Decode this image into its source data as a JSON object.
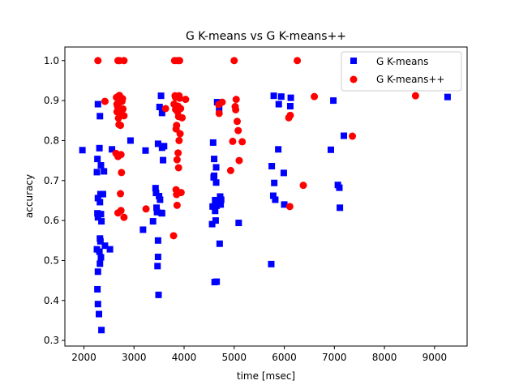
{
  "chart_data": {
    "type": "scatter",
    "title": "G K-means vs G K-means++",
    "xlabel": "time [msec]",
    "ylabel": "accuracy",
    "xlim": [
      1620,
      9650
    ],
    "ylim": [
      0.286,
      1.034
    ],
    "xticks": [
      2000,
      3000,
      4000,
      5000,
      6000,
      7000,
      8000,
      9000
    ],
    "xtick_labels": [
      "2000",
      "3000",
      "4000",
      "5000",
      "6000",
      "7000",
      "8000",
      "9000"
    ],
    "yticks": [
      0.3,
      0.4,
      0.5,
      0.6,
      0.7,
      0.8,
      0.9,
      1.0
    ],
    "ytick_labels": [
      "0.3",
      "0.4",
      "0.5",
      "0.6",
      "0.7",
      "0.8",
      "0.9",
      "1.0"
    ],
    "grid": false,
    "legend": {
      "position": "top-right"
    },
    "series": [
      {
        "name": "G K-means",
        "marker": "square",
        "color": "#0000ff",
        "points": [
          [
            1970,
            0.776
          ],
          [
            2280,
            0.891
          ],
          [
            2270,
            0.754
          ],
          [
            2260,
            0.721
          ],
          [
            2280,
            0.656
          ],
          [
            2270,
            0.618
          ],
          [
            2280,
            0.608
          ],
          [
            2260,
            0.528
          ],
          [
            2280,
            0.472
          ],
          [
            2270,
            0.428
          ],
          [
            2280,
            0.391
          ],
          [
            2300,
            0.366
          ],
          [
            2310,
            0.781
          ],
          [
            2320,
            0.861
          ],
          [
            2340,
            0.738
          ],
          [
            2330,
            0.666
          ],
          [
            2320,
            0.646
          ],
          [
            2340,
            0.616
          ],
          [
            2350,
            0.598
          ],
          [
            2320,
            0.555
          ],
          [
            2330,
            0.548
          ],
          [
            2310,
            0.522
          ],
          [
            2340,
            0.508
          ],
          [
            2320,
            0.492
          ],
          [
            2350,
            0.326
          ],
          [
            2380,
            0.666
          ],
          [
            2400,
            0.723
          ],
          [
            2420,
            0.537
          ],
          [
            2520,
            0.528
          ],
          [
            2560,
            0.778
          ],
          [
            2930,
            0.8
          ],
          [
            3180,
            0.577
          ],
          [
            3230,
            0.775
          ],
          [
            3380,
            0.598
          ],
          [
            3430,
            0.681
          ],
          [
            3440,
            0.669
          ],
          [
            3450,
            0.632
          ],
          [
            3460,
            0.621
          ],
          [
            3470,
            0.486
          ],
          [
            3480,
            0.509
          ],
          [
            3480,
            0.55
          ],
          [
            3480,
            0.792
          ],
          [
            3490,
            0.414
          ],
          [
            3500,
            0.661
          ],
          [
            3510,
            0.884
          ],
          [
            3520,
            0.652
          ],
          [
            3540,
            0.912
          ],
          [
            3550,
            0.619
          ],
          [
            3560,
            0.618
          ],
          [
            3560,
            0.782
          ],
          [
            3580,
            0.751
          ],
          [
            3600,
            0.786
          ],
          [
            3560,
            0.869
          ],
          [
            4560,
            0.591
          ],
          [
            4570,
            0.635
          ],
          [
            4580,
            0.795
          ],
          [
            4590,
            0.708
          ],
          [
            4600,
            0.754
          ],
          [
            4600,
            0.712
          ],
          [
            4610,
            0.446
          ],
          [
            4620,
            0.624
          ],
          [
            4620,
            0.651
          ],
          [
            4630,
            0.6
          ],
          [
            4640,
            0.695
          ],
          [
            4640,
            0.733
          ],
          [
            4650,
            0.447
          ],
          [
            4650,
            0.637
          ],
          [
            4660,
            0.896
          ],
          [
            4700,
            0.88
          ],
          [
            4710,
            0.542
          ],
          [
            4720,
            0.66
          ],
          [
            4730,
            0.64
          ],
          [
            4740,
            0.652
          ],
          [
            5090,
            0.594
          ],
          [
            5740,
            0.491
          ],
          [
            5750,
            0.736
          ],
          [
            5780,
            0.662
          ],
          [
            5790,
            0.912
          ],
          [
            5800,
            0.694
          ],
          [
            5820,
            0.652
          ],
          [
            5880,
            0.778
          ],
          [
            5890,
            0.891
          ],
          [
            5940,
            0.91
          ],
          [
            5990,
            0.719
          ],
          [
            6000,
            0.64
          ],
          [
            6120,
            0.886
          ],
          [
            6130,
            0.907
          ],
          [
            6930,
            0.777
          ],
          [
            6980,
            0.9
          ],
          [
            7070,
            0.689
          ],
          [
            7110,
            0.632
          ],
          [
            7100,
            0.682
          ],
          [
            7190,
            0.812
          ],
          [
            9260,
            0.909
          ]
        ]
      },
      {
        "name": "G K-means++",
        "marker": "circle",
        "color": "#ff0000",
        "points": [
          [
            2280,
            1.0
          ],
          [
            2420,
            0.898
          ],
          [
            2640,
            0.768
          ],
          [
            2650,
            0.908
          ],
          [
            2660,
            0.891
          ],
          [
            2660,
            0.872
          ],
          [
            2670,
            0.908
          ],
          [
            2670,
            0.886
          ],
          [
            2680,
            1.0
          ],
          [
            2680,
            0.76
          ],
          [
            2680,
            0.619
          ],
          [
            2690,
            0.878
          ],
          [
            2690,
            0.856
          ],
          [
            2700,
            0.84
          ],
          [
            2700,
            0.912
          ],
          [
            2710,
            1.0
          ],
          [
            2710,
            0.913
          ],
          [
            2720,
            0.896
          ],
          [
            2720,
            0.866
          ],
          [
            2730,
            0.838
          ],
          [
            2730,
            0.667
          ],
          [
            2740,
            0.906
          ],
          [
            2740,
            0.625
          ],
          [
            2740,
            0.765
          ],
          [
            2750,
            0.72
          ],
          [
            2760,
            0.898
          ],
          [
            2770,
            0.905
          ],
          [
            2780,
            0.879
          ],
          [
            2800,
            1.0
          ],
          [
            2800,
            0.862
          ],
          [
            2800,
            0.608
          ],
          [
            3240,
            0.629
          ],
          [
            3630,
            0.88
          ],
          [
            3790,
            0.562
          ],
          [
            3800,
            0.891
          ],
          [
            3810,
            1.0
          ],
          [
            3820,
            0.912
          ],
          [
            3830,
            0.908
          ],
          [
            3830,
            0.878
          ],
          [
            3840,
            0.829
          ],
          [
            3840,
            0.677
          ],
          [
            3850,
            0.838
          ],
          [
            3850,
            0.665
          ],
          [
            3860,
            0.752
          ],
          [
            3860,
            0.638
          ],
          [
            3870,
            1.0
          ],
          [
            3870,
            0.872
          ],
          [
            3880,
            0.886
          ],
          [
            3880,
            0.769
          ],
          [
            3890,
            0.86
          ],
          [
            3890,
            0.732
          ],
          [
            3900,
            0.912
          ],
          [
            3900,
            0.8
          ],
          [
            3910,
            1.0
          ],
          [
            3910,
            0.906
          ],
          [
            3920,
            0.817
          ],
          [
            3930,
            0.88
          ],
          [
            3940,
            0.67
          ],
          [
            3960,
            0.857
          ],
          [
            4030,
            0.903
          ],
          [
            4690,
            0.89
          ],
          [
            4700,
            0.868
          ],
          [
            4760,
            0.896
          ],
          [
            4930,
            0.725
          ],
          [
            4970,
            0.798
          ],
          [
            5000,
            1.0
          ],
          [
            5020,
            0.885
          ],
          [
            5030,
            0.877
          ],
          [
            5040,
            0.903
          ],
          [
            5060,
            0.848
          ],
          [
            5080,
            0.825
          ],
          [
            5100,
            0.75
          ],
          [
            5160,
            0.797
          ],
          [
            6090,
            0.857
          ],
          [
            6110,
            0.635
          ],
          [
            6120,
            0.863
          ],
          [
            6260,
            1.0
          ],
          [
            6380,
            0.688
          ],
          [
            6600,
            0.91
          ],
          [
            7360,
            0.811
          ],
          [
            8620,
            0.912
          ]
        ]
      }
    ]
  }
}
